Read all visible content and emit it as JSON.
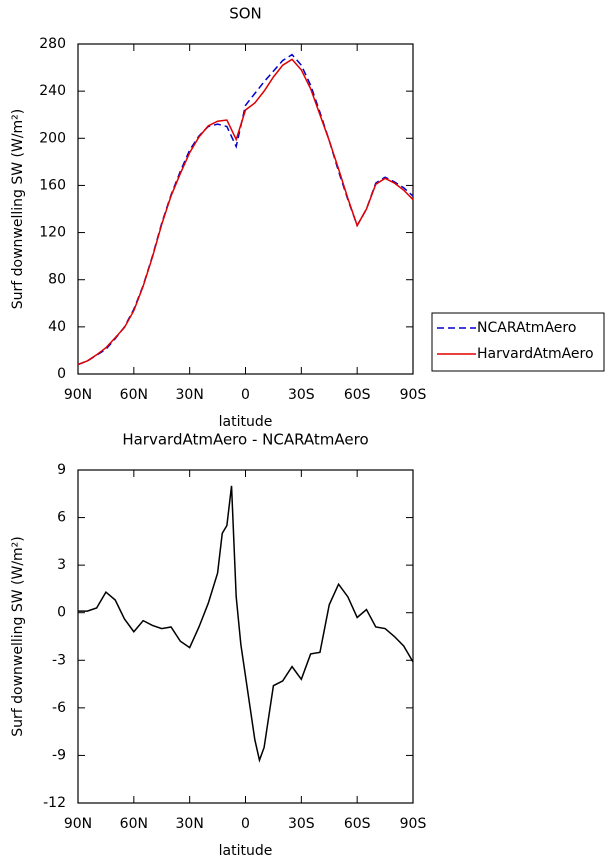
{
  "chart_data": [
    {
      "type": "line",
      "title": "SON",
      "xlabel": "latitude",
      "ylabel": "Surf downwelling SW (W/m²)",
      "x": [
        90,
        85,
        80,
        75,
        70,
        65,
        60,
        55,
        50,
        45,
        40,
        35,
        30,
        25,
        20,
        15,
        10,
        5,
        0,
        -5,
        -10,
        -15,
        -20,
        -25,
        -30,
        -35,
        -40,
        -45,
        -50,
        -55,
        -60,
        -65,
        -70,
        -75,
        -80,
        -85,
        -90
      ],
      "series": [
        {
          "name": "NCARAtmAero",
          "color": "#0000cc",
          "line_style": "dashed",
          "values": [
            8,
            11,
            16,
            21,
            30,
            40,
            55,
            75,
            100,
            128,
            152,
            172,
            190,
            202,
            210,
            212,
            210,
            193,
            228,
            238,
            248,
            257,
            266,
            271,
            262,
            245,
            222,
            198,
            172,
            148,
            126,
            140,
            162,
            167,
            163,
            158,
            151
          ]
        },
        {
          "name": "HarvardAtmAero",
          "color": "#e00000",
          "line_style": "solid",
          "values": [
            8.1,
            11.1,
            16.3,
            22.3,
            30.8,
            39.6,
            53.8,
            74.5,
            99.2,
            127,
            151.1,
            170.2,
            187.8,
            201.1,
            210.6,
            214.5,
            215.5,
            199,
            224,
            230,
            240,
            252,
            262,
            267,
            258,
            242,
            220,
            198,
            174,
            149,
            126,
            140,
            161,
            166,
            162,
            156,
            148
          ]
        }
      ],
      "xlim": [
        90,
        -90
      ],
      "xticks": [
        {
          "value": 90,
          "label": "90N"
        },
        {
          "value": 60,
          "label": "60N"
        },
        {
          "value": 30,
          "label": "30N"
        },
        0,
        {
          "value": -30,
          "label": "30S"
        },
        {
          "value": -60,
          "label": "60S"
        },
        {
          "value": -90,
          "label": "90S"
        }
      ],
      "ylim": [
        0,
        280
      ],
      "yticks": [
        0,
        40,
        80,
        120,
        160,
        200,
        240,
        280
      ],
      "legend": "right"
    },
    {
      "type": "line",
      "title": "HarvardAtmAero - NCARAtmAero",
      "xlabel": "latitude",
      "ylabel": "Surf downwelling SW (W/m²)",
      "x": [
        90,
        85,
        80,
        75,
        70,
        65,
        60,
        55,
        50,
        45,
        40,
        35,
        30,
        25,
        20,
        15,
        12.5,
        10,
        7.5,
        5,
        2.5,
        0,
        -2.5,
        -5,
        -7.5,
        -10,
        -15,
        -20,
        -25,
        -30,
        -35,
        -40,
        -45,
        -50,
        -55,
        -60,
        -65,
        -70,
        -75,
        -80,
        -85,
        -90
      ],
      "series": [
        {
          "color": "#000000",
          "line_style": "solid",
          "values": [
            0.1,
            0.1,
            0.3,
            1.3,
            0.8,
            -0.4,
            -1.2,
            -0.5,
            -0.8,
            -1,
            -0.9,
            -1.8,
            -2.2,
            -0.9,
            0.6,
            2.5,
            5,
            5.5,
            8,
            1,
            -2,
            -4,
            -6,
            -8,
            -9.3,
            -8.5,
            -4.6,
            -4.3,
            -3.4,
            -4.2,
            -2.6,
            -2.5,
            0.5,
            1.8,
            1,
            -0.3,
            0.2,
            -0.9,
            -1,
            -1.5,
            -2.1,
            -3.1
          ]
        }
      ],
      "xlim": [
        90,
        -90
      ],
      "xticks": [
        {
          "value": 90,
          "label": "90N"
        },
        {
          "value": 60,
          "label": "60N"
        },
        {
          "value": 30,
          "label": "30N"
        },
        0,
        {
          "value": -30,
          "label": "30S"
        },
        {
          "value": -60,
          "label": "60S"
        },
        {
          "value": -90,
          "label": "90S"
        }
      ],
      "ylim": [
        -12,
        9
      ],
      "yticks": [
        -12,
        -9,
        -6,
        -3,
        0,
        3,
        6,
        9
      ]
    }
  ]
}
